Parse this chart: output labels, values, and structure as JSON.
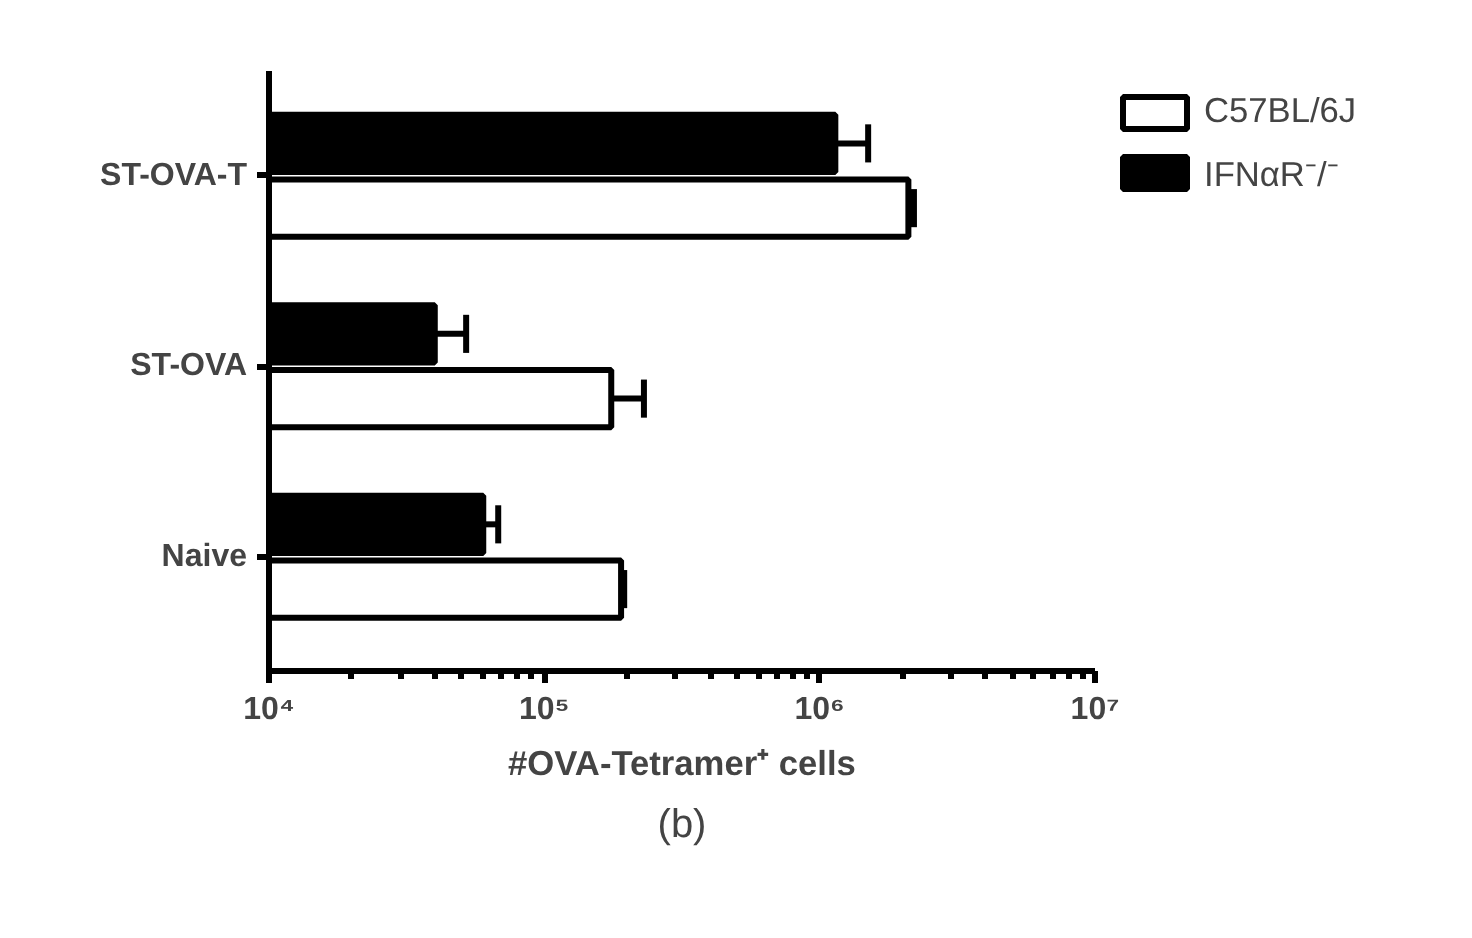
{
  "chart_data": {
    "type": "bar",
    "orientation": "horizontal",
    "log": "x",
    "categories": [
      "ST-OVA-T",
      "ST-OVA",
      "Naive"
    ],
    "series": [
      {
        "name": "C57BL/6J",
        "color": "#ffffff",
        "values": [
          2100000,
          175000,
          190000
        ],
        "errors": [
          [
            2100000,
            2200000
          ],
          [
            175000,
            230000
          ],
          [
            190000,
            195000
          ]
        ]
      },
      {
        "name": "IFNαR⁻/⁻",
        "color": "#000000",
        "values": [
          1140000,
          40000,
          60000
        ],
        "errors": [
          [
            1140000,
            1500000
          ],
          [
            40000,
            52000
          ],
          [
            60000,
            68000
          ]
        ]
      }
    ],
    "xlim": [
      10000,
      10000000
    ],
    "xticks": [
      {
        "value": 10000,
        "label": "10⁴"
      },
      {
        "value": 100000,
        "label": "10⁵"
      },
      {
        "value": 1000000,
        "label": "10⁶"
      },
      {
        "value": 10000000,
        "label": "10⁷"
      }
    ],
    "xlabel": "#OVA-Tetramer⁺ cells",
    "annotations": [
      "(b)"
    ],
    "legend": "top right",
    "grid": false
  }
}
